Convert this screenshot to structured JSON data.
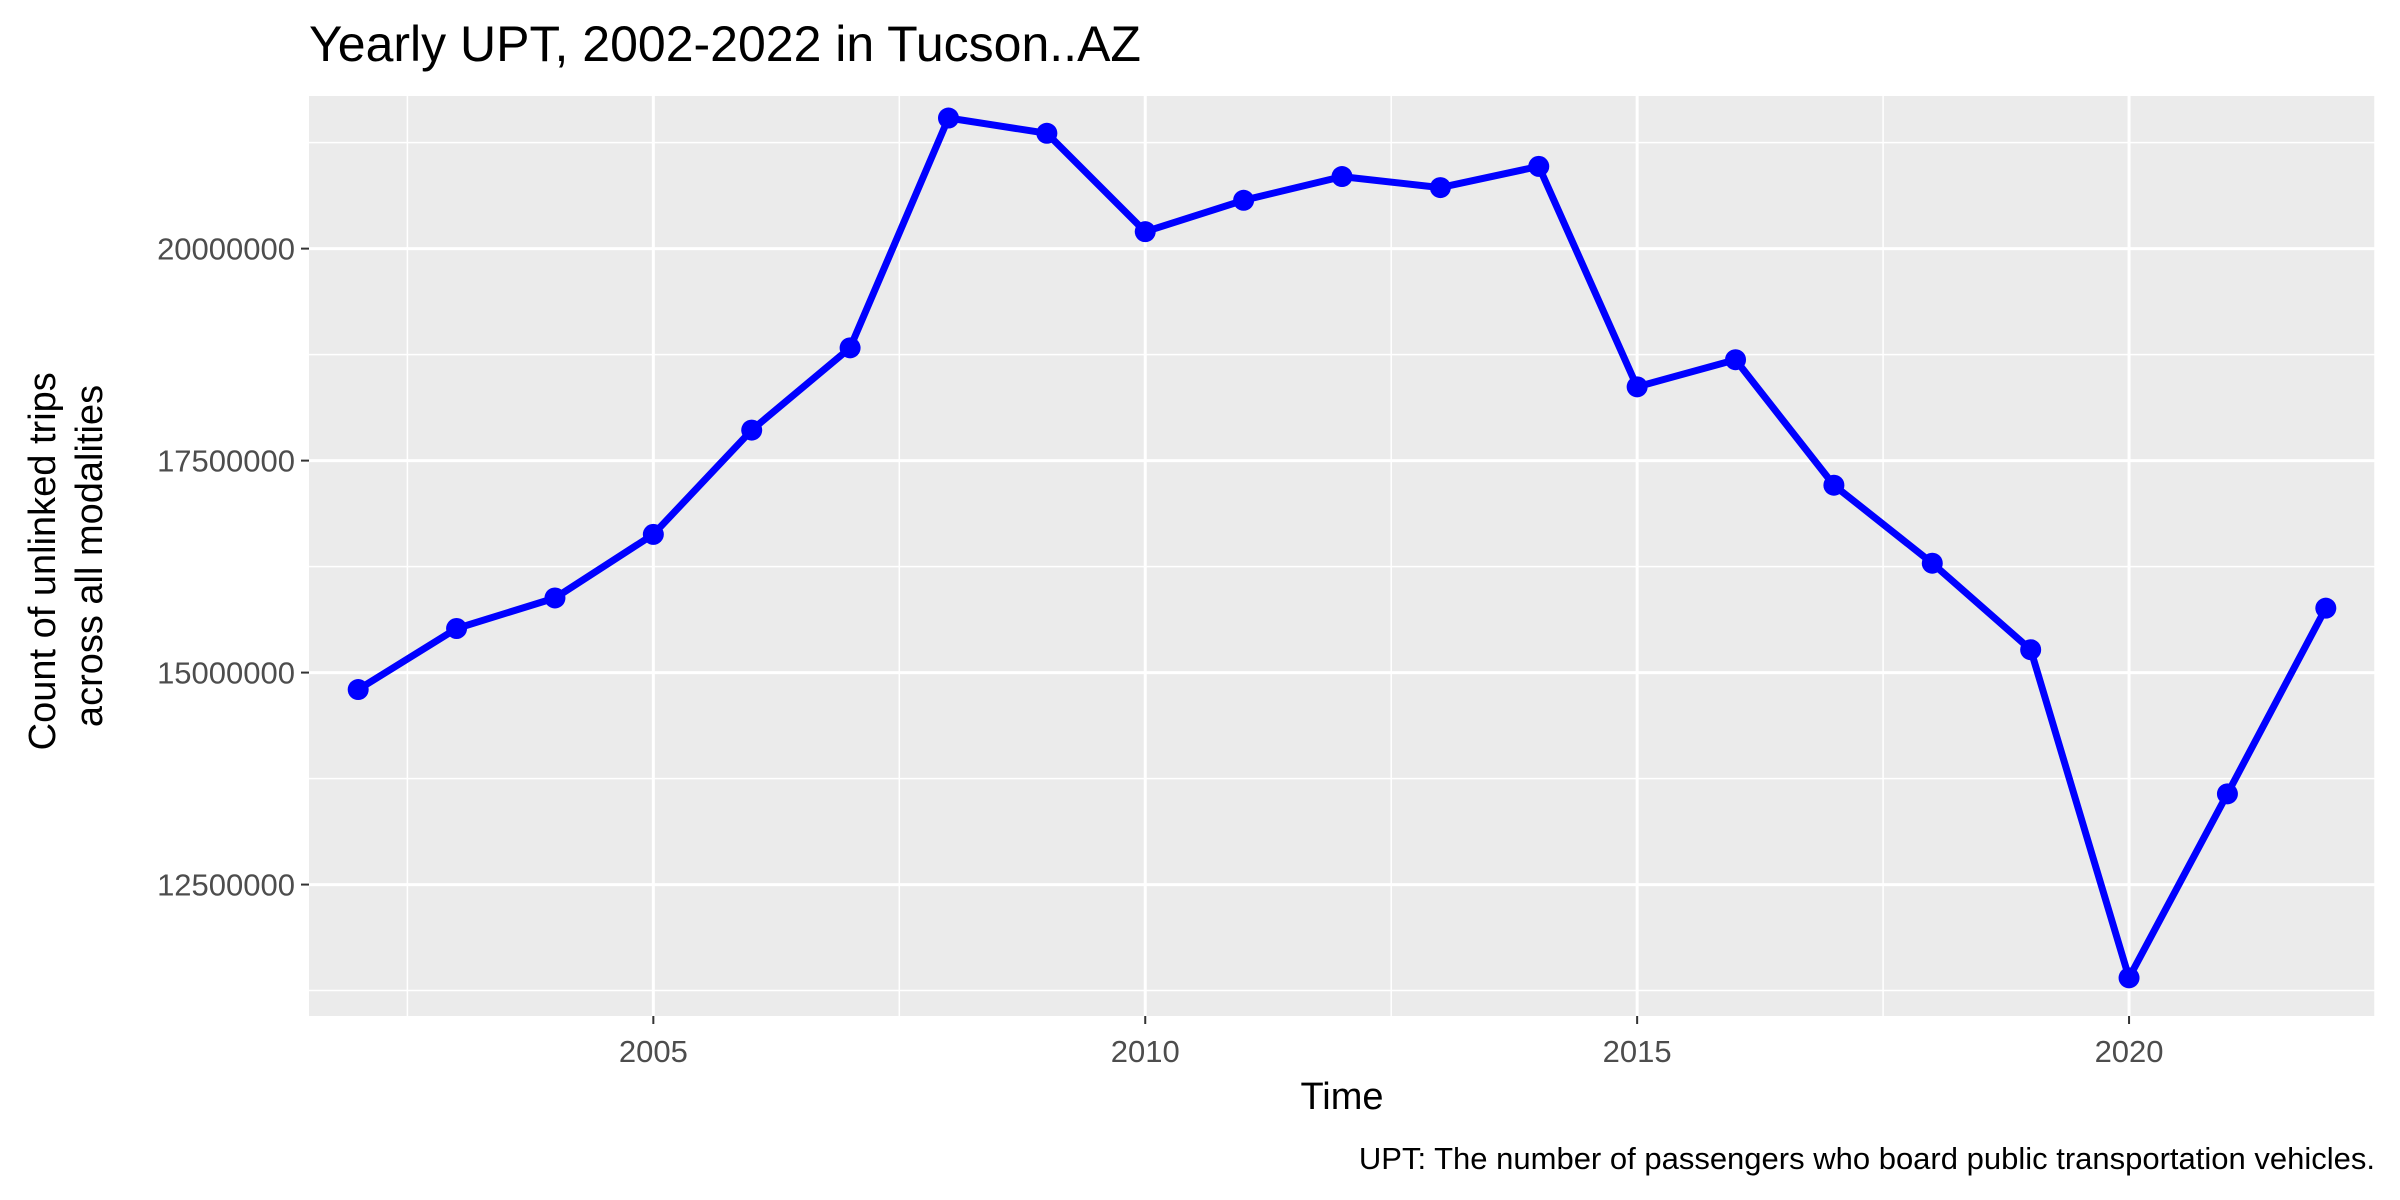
{
  "chart_data": {
    "type": "line",
    "title": "Yearly UPT, 2002-2022 in Tucson..AZ",
    "xlabel": "Time",
    "ylabel_lines": [
      "Count of unlinked trips",
      "across all modalities"
    ],
    "caption": "UPT: The number of passengers who board public transportation vehicles.",
    "xlim": [
      2001.5,
      2022.5
    ],
    "ylim": [
      10950000,
      21800000
    ],
    "x_ticks": [
      2005,
      2010,
      2015,
      2020
    ],
    "x_minor": [
      2002.5,
      2007.5,
      2012.5,
      2017.5,
      2022.5
    ],
    "y_ticks": [
      12500000,
      15000000,
      17500000,
      20000000
    ],
    "y_minor": [
      11250000,
      13750000,
      16250000,
      18750000,
      21250000
    ],
    "grid": true,
    "legend": "none",
    "colors": {
      "series": "#0000ff",
      "panel": "#ebebeb",
      "grid": "#ffffff"
    },
    "series": [
      {
        "x": [
          2002,
          2003,
          2004,
          2005,
          2006,
          2007,
          2008,
          2009,
          2010,
          2011,
          2012,
          2013,
          2014,
          2015,
          2016,
          2017,
          2018,
          2019,
          2020,
          2021,
          2022
        ],
        "values": [
          14800000,
          15520000,
          15880000,
          16630000,
          17860000,
          18830000,
          21540000,
          21360000,
          20200000,
          20570000,
          20850000,
          20720000,
          20970000,
          18370000,
          18690000,
          17210000,
          16290000,
          15270000,
          11400000,
          13570000,
          15760000
        ]
      }
    ]
  }
}
